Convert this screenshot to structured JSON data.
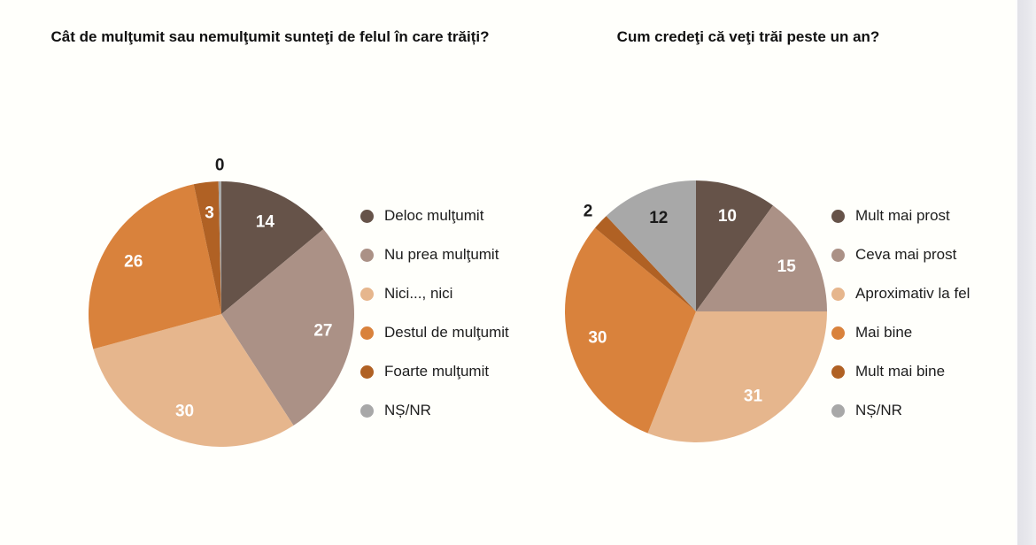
{
  "page": {
    "background": "#fffffb",
    "edge_strip_color": "#e7e7ec"
  },
  "chart_data": [
    {
      "type": "pie",
      "title": "Cât de mulţumit sau nemulţumit sunteţi de felul în care trăiți?",
      "categories": [
        "Deloc mulţumit",
        "Nu prea mulţumit",
        "Nici..., nici",
        "Destul de mulţumit",
        "Foarte mulţumit",
        "NȘ/NR"
      ],
      "values": [
        14,
        27,
        30,
        26,
        3,
        0
      ],
      "colors": [
        "#665349",
        "#ab9186",
        "#e6b68d",
        "#d9823c",
        "#b06124",
        "#a8a8a8"
      ],
      "label_colors": [
        "#ffffff",
        "#ffffff",
        "#ffffff",
        "#ffffff",
        "#ffffff",
        "#1a1a1a"
      ],
      "label_inside": [
        true,
        true,
        true,
        true,
        true,
        false
      ],
      "legend_position": "right",
      "start_angle_deg": 0,
      "direction": "clockwise"
    },
    {
      "type": "pie",
      "title": "Cum credeţi că veţi trăi peste un an?",
      "categories": [
        "Mult mai prost",
        "Ceva mai prost",
        "Aproximativ la fel",
        "Mai bine",
        "Mult mai bine",
        "NȘ/NR"
      ],
      "values": [
        10,
        15,
        31,
        30,
        2,
        12
      ],
      "colors": [
        "#665349",
        "#ab9186",
        "#e6b68d",
        "#d9823c",
        "#b06124",
        "#a8a8a8"
      ],
      "label_colors": [
        "#ffffff",
        "#ffffff",
        "#ffffff",
        "#ffffff",
        "#1a1a1a",
        "#1a1a1a"
      ],
      "label_inside": [
        true,
        true,
        true,
        true,
        false,
        true
      ],
      "legend_position": "right",
      "start_angle_deg": 0,
      "direction": "clockwise"
    }
  ]
}
